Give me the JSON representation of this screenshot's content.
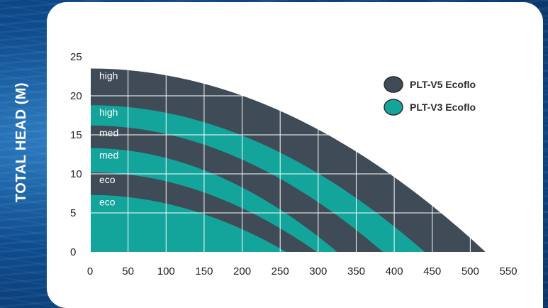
{
  "chart_data": {
    "type": "area",
    "ylabel": "TOTAL HEAD (M)",
    "xlabel": "",
    "xlim": [
      0,
      550
    ],
    "ylim": [
      0,
      25
    ],
    "x_ticks": [
      0,
      50,
      100,
      150,
      200,
      250,
      300,
      350,
      400,
      450,
      500,
      550
    ],
    "y_ticks": [
      0,
      5,
      10,
      15,
      20,
      25
    ],
    "grid": true,
    "legend_position": "top-right",
    "series": [
      {
        "name": "PLT-V5 Ecoflo",
        "color": "#3f4b56"
      },
      {
        "name": "PLT-V3 Ecoflo",
        "color": "#13a49c"
      }
    ],
    "curves": [
      {
        "label": "high",
        "series": "PLT-V5 Ecoflo",
        "shutoff_head": 23.5,
        "max_flow": 520
      },
      {
        "label": "high",
        "series": "PLT-V3 Ecoflo",
        "shutoff_head": 18.8,
        "max_flow": 440
      },
      {
        "label": "med",
        "series": "PLT-V5 Ecoflo",
        "shutoff_head": 16.2,
        "max_flow": 385
      },
      {
        "label": "med",
        "series": "PLT-V3 Ecoflo",
        "shutoff_head": 13.3,
        "max_flow": 325
      },
      {
        "label": "eco",
        "series": "PLT-V5 Ecoflo",
        "shutoff_head": 10.2,
        "max_flow": 298
      },
      {
        "label": "eco",
        "series": "PLT-V3 Ecoflo",
        "shutoff_head": 7.3,
        "max_flow": 258
      }
    ]
  }
}
